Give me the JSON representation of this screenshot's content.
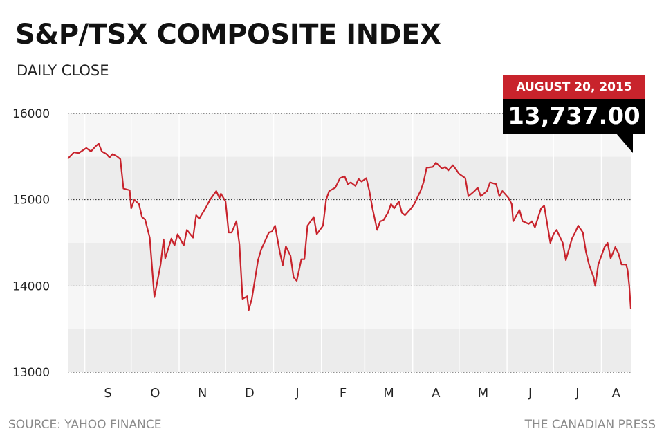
{
  "title": "S&P/TSX COMPOSITE INDEX",
  "subtitle": "DAILY CLOSE",
  "source": "SOURCE: YAHOO FINANCE",
  "credit": "THE CANADIAN PRESS",
  "callout": {
    "date": "AUGUST 20, 2015",
    "value": "13,737.00"
  },
  "colors": {
    "line": "#c8232c",
    "band_dark": "#ececec",
    "band_light": "#f6f6f6",
    "callout_red": "#c8232c",
    "callout_black": "#000000"
  },
  "chart_data": {
    "type": "line",
    "title": "S&P/TSX COMPOSITE INDEX",
    "subtitle": "DAILY CLOSE",
    "ylim": [
      13000,
      16000
    ],
    "yticks": [
      16000,
      15000,
      14000,
      13000
    ],
    "ytick_labels": [
      "16000",
      "15000",
      "14000",
      "13000"
    ],
    "xlim": [
      "2014-08-21",
      "2015-08-20"
    ],
    "month_labels": [
      "S",
      "O",
      "N",
      "D",
      "J",
      "F",
      "M",
      "A",
      "M",
      "J",
      "J",
      "A"
    ],
    "grid": true,
    "series": [
      {
        "values": [
          {
            "x": "2014-08-21",
            "y": 15475
          },
          {
            "x": "2014-08-25",
            "y": 15550
          },
          {
            "x": "2014-08-28",
            "y": 15540
          },
          {
            "x": "2014-09-02",
            "y": 15600
          },
          {
            "x": "2014-09-05",
            "y": 15560
          },
          {
            "x": "2014-09-08",
            "y": 15620
          },
          {
            "x": "2014-09-10",
            "y": 15650
          },
          {
            "x": "2014-09-12",
            "y": 15560
          },
          {
            "x": "2014-09-15",
            "y": 15530
          },
          {
            "x": "2014-09-17",
            "y": 15490
          },
          {
            "x": "2014-09-19",
            "y": 15530
          },
          {
            "x": "2014-09-22",
            "y": 15500
          },
          {
            "x": "2014-09-24",
            "y": 15470
          },
          {
            "x": "2014-09-26",
            "y": 15130
          },
          {
            "x": "2014-09-30",
            "y": 15110
          },
          {
            "x": "2014-10-01",
            "y": 14900
          },
          {
            "x": "2014-10-03",
            "y": 15000
          },
          {
            "x": "2014-10-06",
            "y": 14950
          },
          {
            "x": "2014-10-08",
            "y": 14800
          },
          {
            "x": "2014-10-10",
            "y": 14770
          },
          {
            "x": "2014-10-13",
            "y": 14560
          },
          {
            "x": "2014-10-15",
            "y": 14100
          },
          {
            "x": "2014-10-16",
            "y": 13870
          },
          {
            "x": "2014-10-20",
            "y": 14250
          },
          {
            "x": "2014-10-22",
            "y": 14540
          },
          {
            "x": "2014-10-23",
            "y": 14320
          },
          {
            "x": "2014-10-27",
            "y": 14550
          },
          {
            "x": "2014-10-29",
            "y": 14470
          },
          {
            "x": "2014-10-31",
            "y": 14600
          },
          {
            "x": "2014-11-04",
            "y": 14470
          },
          {
            "x": "2014-11-06",
            "y": 14650
          },
          {
            "x": "2014-11-10",
            "y": 14560
          },
          {
            "x": "2014-11-12",
            "y": 14820
          },
          {
            "x": "2014-11-14",
            "y": 14780
          },
          {
            "x": "2014-11-18",
            "y": 14900
          },
          {
            "x": "2014-11-21",
            "y": 15000
          },
          {
            "x": "2014-11-25",
            "y": 15100
          },
          {
            "x": "2014-11-27",
            "y": 15020
          },
          {
            "x": "2014-11-28",
            "y": 15070
          },
          {
            "x": "2014-12-01",
            "y": 14980
          },
          {
            "x": "2014-12-03",
            "y": 14620
          },
          {
            "x": "2014-12-05",
            "y": 14620
          },
          {
            "x": "2014-12-08",
            "y": 14750
          },
          {
            "x": "2014-12-10",
            "y": 14480
          },
          {
            "x": "2014-12-12",
            "y": 13850
          },
          {
            "x": "2014-12-15",
            "y": 13880
          },
          {
            "x": "2014-12-16",
            "y": 13720
          },
          {
            "x": "2014-12-18",
            "y": 13850
          },
          {
            "x": "2014-12-22",
            "y": 14300
          },
          {
            "x": "2014-12-24",
            "y": 14420
          },
          {
            "x": "2014-12-29",
            "y": 14620
          },
          {
            "x": "2014-12-31",
            "y": 14630
          },
          {
            "x": "2015-01-02",
            "y": 14700
          },
          {
            "x": "2015-01-05",
            "y": 14400
          },
          {
            "x": "2015-01-07",
            "y": 14240
          },
          {
            "x": "2015-01-09",
            "y": 14460
          },
          {
            "x": "2015-01-12",
            "y": 14350
          },
          {
            "x": "2015-01-14",
            "y": 14100
          },
          {
            "x": "2015-01-16",
            "y": 14060
          },
          {
            "x": "2015-01-19",
            "y": 14310
          },
          {
            "x": "2015-01-21",
            "y": 14310
          },
          {
            "x": "2015-01-23",
            "y": 14700
          },
          {
            "x": "2015-01-27",
            "y": 14800
          },
          {
            "x": "2015-01-29",
            "y": 14600
          },
          {
            "x": "2015-02-02",
            "y": 14700
          },
          {
            "x": "2015-02-04",
            "y": 15000
          },
          {
            "x": "2015-02-06",
            "y": 15100
          },
          {
            "x": "2015-02-10",
            "y": 15140
          },
          {
            "x": "2015-02-13",
            "y": 15250
          },
          {
            "x": "2015-02-16",
            "y": 15270
          },
          {
            "x": "2015-02-18",
            "y": 15180
          },
          {
            "x": "2015-02-20",
            "y": 15200
          },
          {
            "x": "2015-02-23",
            "y": 15160
          },
          {
            "x": "2015-02-25",
            "y": 15240
          },
          {
            "x": "2015-02-27",
            "y": 15210
          },
          {
            "x": "2015-03-02",
            "y": 15250
          },
          {
            "x": "2015-03-04",
            "y": 15100
          },
          {
            "x": "2015-03-06",
            "y": 14900
          },
          {
            "x": "2015-03-09",
            "y": 14650
          },
          {
            "x": "2015-03-11",
            "y": 14750
          },
          {
            "x": "2015-03-13",
            "y": 14760
          },
          {
            "x": "2015-03-16",
            "y": 14850
          },
          {
            "x": "2015-03-18",
            "y": 14950
          },
          {
            "x": "2015-03-20",
            "y": 14900
          },
          {
            "x": "2015-03-23",
            "y": 14980
          },
          {
            "x": "2015-03-25",
            "y": 14850
          },
          {
            "x": "2015-03-27",
            "y": 14820
          },
          {
            "x": "2015-03-31",
            "y": 14900
          },
          {
            "x": "2015-04-02",
            "y": 14950
          },
          {
            "x": "2015-04-06",
            "y": 15100
          },
          {
            "x": "2015-04-08",
            "y": 15200
          },
          {
            "x": "2015-04-10",
            "y": 15370
          },
          {
            "x": "2015-04-14",
            "y": 15380
          },
          {
            "x": "2015-04-16",
            "y": 15430
          },
          {
            "x": "2015-04-20",
            "y": 15360
          },
          {
            "x": "2015-04-22",
            "y": 15380
          },
          {
            "x": "2015-04-24",
            "y": 15340
          },
          {
            "x": "2015-04-27",
            "y": 15400
          },
          {
            "x": "2015-04-29",
            "y": 15350
          },
          {
            "x": "2015-05-01",
            "y": 15300
          },
          {
            "x": "2015-05-05",
            "y": 15250
          },
          {
            "x": "2015-05-07",
            "y": 15040
          },
          {
            "x": "2015-05-11",
            "y": 15100
          },
          {
            "x": "2015-05-13",
            "y": 15140
          },
          {
            "x": "2015-05-15",
            "y": 15040
          },
          {
            "x": "2015-05-19",
            "y": 15100
          },
          {
            "x": "2015-05-21",
            "y": 15200
          },
          {
            "x": "2015-05-25",
            "y": 15180
          },
          {
            "x": "2015-05-27",
            "y": 15040
          },
          {
            "x": "2015-05-29",
            "y": 15100
          },
          {
            "x": "2015-06-02",
            "y": 15020
          },
          {
            "x": "2015-06-04",
            "y": 14950
          },
          {
            "x": "2015-06-05",
            "y": 14750
          },
          {
            "x": "2015-06-09",
            "y": 14880
          },
          {
            "x": "2015-06-11",
            "y": 14750
          },
          {
            "x": "2015-06-15",
            "y": 14720
          },
          {
            "x": "2015-06-17",
            "y": 14750
          },
          {
            "x": "2015-06-19",
            "y": 14680
          },
          {
            "x": "2015-06-23",
            "y": 14900
          },
          {
            "x": "2015-06-25",
            "y": 14930
          },
          {
            "x": "2015-06-29",
            "y": 14500
          },
          {
            "x": "2015-07-01",
            "y": 14600
          },
          {
            "x": "2015-07-03",
            "y": 14650
          },
          {
            "x": "2015-07-07",
            "y": 14500
          },
          {
            "x": "2015-07-09",
            "y": 14300
          },
          {
            "x": "2015-07-13",
            "y": 14550
          },
          {
            "x": "2015-07-15",
            "y": 14620
          },
          {
            "x": "2015-07-17",
            "y": 14700
          },
          {
            "x": "2015-07-20",
            "y": 14620
          },
          {
            "x": "2015-07-22",
            "y": 14400
          },
          {
            "x": "2015-07-24",
            "y": 14250
          },
          {
            "x": "2015-07-27",
            "y": 14100
          },
          {
            "x": "2015-07-28",
            "y": 14000
          },
          {
            "x": "2015-07-30",
            "y": 14250
          },
          {
            "x": "2015-08-03",
            "y": 14450
          },
          {
            "x": "2015-08-05",
            "y": 14500
          },
          {
            "x": "2015-08-07",
            "y": 14320
          },
          {
            "x": "2015-08-10",
            "y": 14450
          },
          {
            "x": "2015-08-12",
            "y": 14380
          },
          {
            "x": "2015-08-14",
            "y": 14250
          },
          {
            "x": "2015-08-17",
            "y": 14250
          },
          {
            "x": "2015-08-18",
            "y": 14180
          },
          {
            "x": "2015-08-19",
            "y": 14000
          },
          {
            "x": "2015-08-20",
            "y": 13737
          }
        ]
      }
    ],
    "annotation": {
      "x": "2015-08-20",
      "label": "AUGUST 20, 2015",
      "value_label": "13,737.00"
    }
  }
}
